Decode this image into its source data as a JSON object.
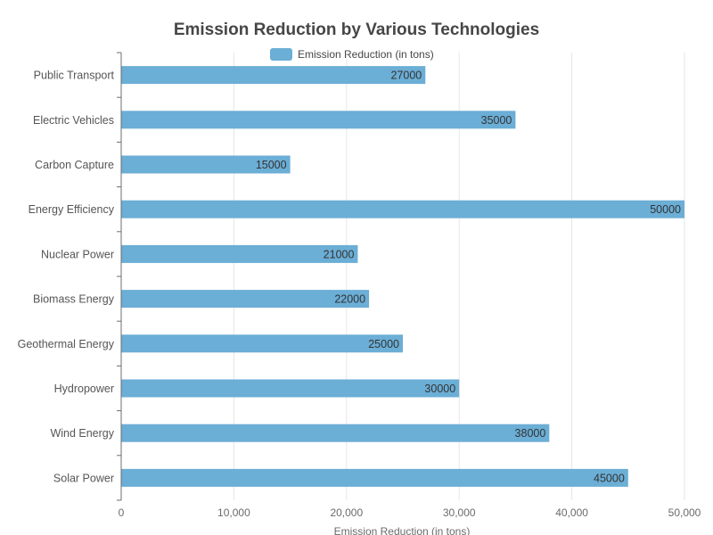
{
  "chart_data": {
    "type": "bar",
    "orientation": "horizontal",
    "title": "Emission Reduction by Various Technologies",
    "xlabel": "Emission Reduction (in tons)",
    "ylabel": "",
    "categories": [
      "Solar Power",
      "Wind Energy",
      "Hydropower",
      "Geothermal Energy",
      "Biomass Energy",
      "Nuclear Power",
      "Energy Efficiency",
      "Carbon Capture",
      "Electric Vehicles",
      "Public Transport"
    ],
    "series": [
      {
        "name": "Emission Reduction (in tons)",
        "values": [
          45000,
          38000,
          30000,
          25000,
          22000,
          21000,
          50000,
          15000,
          35000,
          27000
        ],
        "color": "#6baed6"
      }
    ],
    "xlim": [
      0,
      50000
    ],
    "xticks": [
      0,
      10000,
      20000,
      30000,
      40000,
      50000
    ],
    "xtick_labels": [
      "0",
      "10,000",
      "20,000",
      "30,000",
      "40,000",
      "50,000"
    ],
    "grid": true,
    "legend_position": "top-center",
    "data_labels": true
  }
}
